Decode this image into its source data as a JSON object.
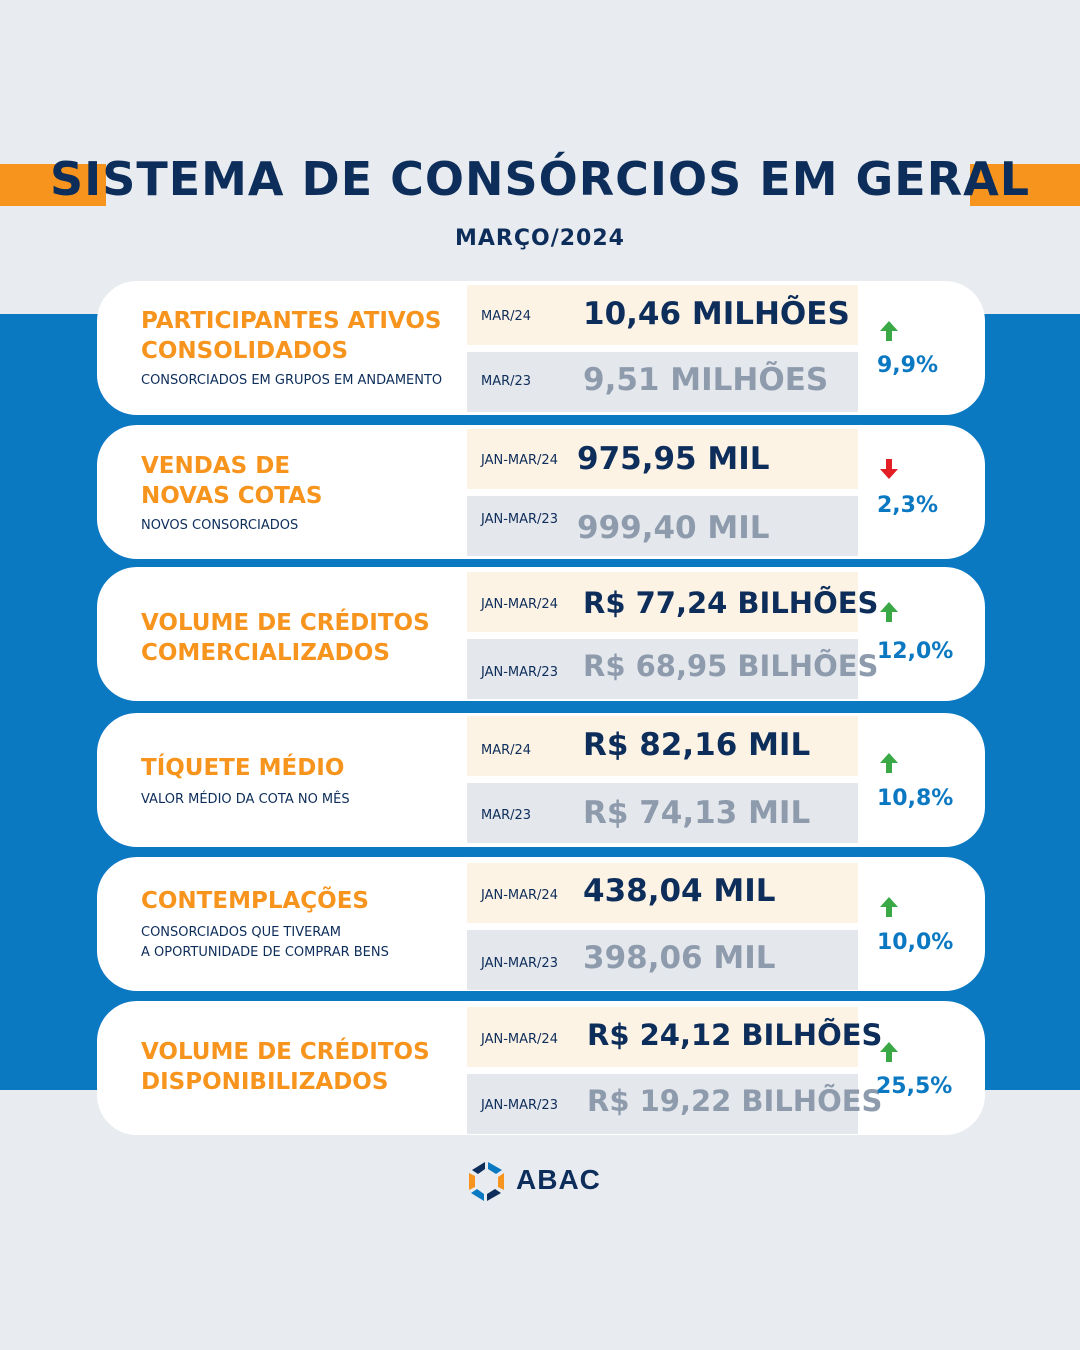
{
  "header": {
    "title": "SISTEMA DE CONSÓRCIOS EM GERAL",
    "subtitle": "MARÇO/2024"
  },
  "colors": {
    "navy": "#0d2d5a",
    "orange": "#f7941d",
    "blue": "#0b78c2",
    "up_arrow": "#3aa845",
    "down_arrow": "#e31e24"
  },
  "cards": [
    {
      "title": "PARTICIPANTES ATIVOS\nCONSOLIDADOS",
      "description": "CONSORCIADOS EM GRUPOS EM ANDAMENTO",
      "current_period": "MAR/24",
      "current_value": "10,46 MILHÕES",
      "previous_period": "MAR/23",
      "previous_value": "9,51 MILHÕES",
      "trend": "up",
      "trend_icon": "arrow-up-icon",
      "change": "9,9%"
    },
    {
      "title": "VENDAS DE\nNOVAS COTAS",
      "description": "NOVOS CONSORCIADOS",
      "current_period": "JAN-MAR/24",
      "current_value": "975,95 MIL",
      "previous_period": "JAN-MAR/23",
      "previous_value": "999,40 MIL",
      "trend": "down",
      "trend_icon": "arrow-down-icon",
      "change": "2,3%"
    },
    {
      "title": "VOLUME DE CRÉDITOS\nCOMERCIALIZADOS",
      "description": "",
      "current_period": "JAN-MAR/24",
      "current_value": "R$ 77,24 BILHÕES",
      "previous_period": "JAN-MAR/23",
      "previous_value": "R$ 68,95 BILHÕES",
      "trend": "up",
      "trend_icon": "arrow-up-icon",
      "change": "12,0%"
    },
    {
      "title": "TÍQUETE MÉDIO",
      "description": "VALOR MÉDIO DA COTA NO MÊS",
      "current_period": "MAR/24",
      "current_value": "R$ 82,16 MIL",
      "previous_period": "MAR/23",
      "previous_value": "R$ 74,13 MIL",
      "trend": "up",
      "trend_icon": "arrow-up-icon",
      "change": "10,8%"
    },
    {
      "title": "CONTEMPLAÇÕES",
      "description": "CONSORCIADOS QUE TIVERAM\nA OPORTUNIDADE DE COMPRAR BENS",
      "current_period": "JAN-MAR/24",
      "current_value": "438,04 MIL",
      "previous_period": "JAN-MAR/23",
      "previous_value": "398,06 MIL",
      "trend": "up",
      "trend_icon": "arrow-up-icon",
      "change": "10,0%"
    },
    {
      "title": "VOLUME DE CRÉDITOS\nDISPONIBILIZADOS",
      "description": "",
      "current_period": "JAN-MAR/24",
      "current_value": "R$ 24,12 BILHÕES",
      "previous_period": "JAN-MAR/23",
      "previous_value": "R$ 19,22 BILHÕES",
      "trend": "up",
      "trend_icon": "arrow-up-icon",
      "change": "25,5%"
    }
  ],
  "footer": {
    "logo_text": "ABAC",
    "logo_icon": "abac-logo-icon"
  }
}
